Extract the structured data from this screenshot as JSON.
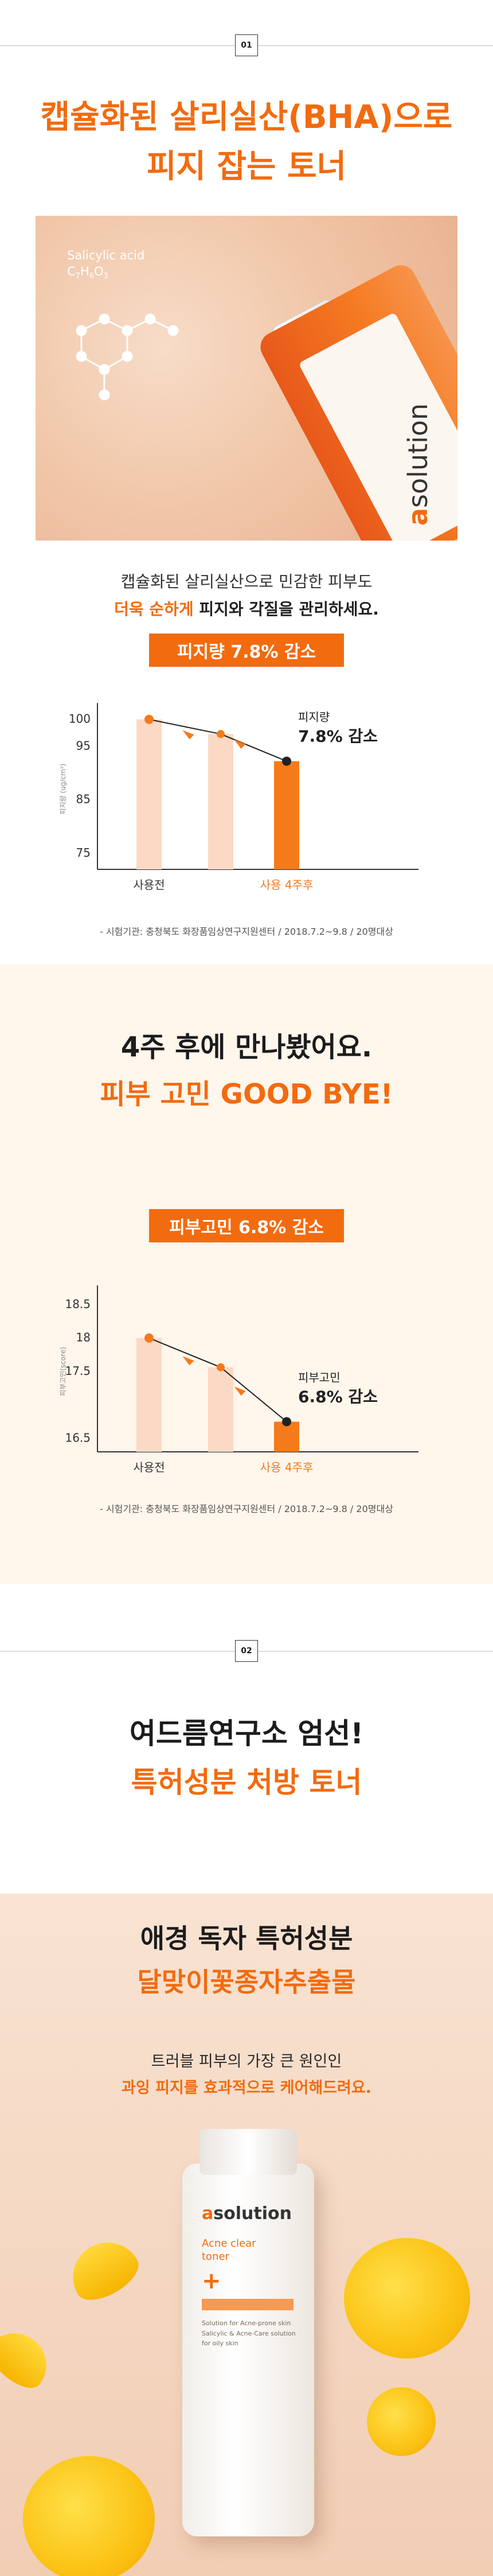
{
  "steps": {
    "one": "01",
    "two": "02"
  },
  "section1": {
    "headline_line1": "캡슐화된 살리실산(BHA)으로",
    "headline_line2": "피지 잡는 토너",
    "hero_formula_name": "Salicylic acid",
    "hero_formula_main": "C",
    "hero_formula_sub1": "7",
    "hero_formula_mid": "H",
    "hero_formula_sub2": "6",
    "hero_formula_end": "O",
    "hero_formula_sub3": "3",
    "hero_brand_a": "a",
    "hero_brand_rest": "solution",
    "desc_line1": "캡슐화된 살리실산으로 민감한 피부도",
    "desc_emph": "더욱 순하게",
    "desc_line2_rest": " 피지와 각질을 관리하세요.",
    "pill": "피지량 7.8% 감소",
    "source": "- 시험기관: 충청북도 화장품임상연구지원센터 / 2018.7.2~9.8 / 20명대상"
  },
  "section2": {
    "headline_line1": "4주 후에 만나봤어요.",
    "headline_line2": "피부 고민 GOOD BYE!",
    "pill": "피부고민 6.8% 감소",
    "source": "- 시험기관: 충청북도 화장품임상연구지원센터 / 2018.7.2~9.8 / 20명대상"
  },
  "section3": {
    "headline_line1": "여드름연구소 엄선!",
    "headline_line2": "특허성분 처방 토너"
  },
  "section4": {
    "headline_line1": "애경 독자 특허성분",
    "headline_line2": "달맞이꽃종자추출물",
    "sub_line1": "트러블 피부의 가장 큰 원인인",
    "sub_line2": "과잉 피지를 효과적으로 케어해드려요.",
    "product_brand_a": "a",
    "product_brand_rest": "solution",
    "product_title1": "Acne clear",
    "product_title2": "toner",
    "product_text": "Solution for Acne-prone skin Salicylic & Acne-Care solution for oily skin"
  },
  "chart_data": [
    {
      "type": "bar",
      "categories": [
        "사용전",
        "사용 4주후"
      ],
      "values": [
        100,
        92.2
      ],
      "ylabel": "피지량 (ug/cm²)",
      "yticks": [
        100,
        95,
        85,
        75
      ],
      "ylim": [
        72,
        102
      ],
      "annotation_line1": "피지량",
      "annotation_line2": "7.8% 감소",
      "bar_colors": [
        "#fcd9c4",
        "#f57a1a"
      ]
    },
    {
      "type": "bar",
      "categories": [
        "사용전",
        "사용 4주후"
      ],
      "values": [
        18.0,
        16.75
      ],
      "ylabel": "피부고민(score)",
      "yticks": [
        18.5,
        18,
        17.5,
        16.5
      ],
      "ylim": [
        16.3,
        18.7
      ],
      "annotation_line1": "피부고민",
      "annotation_line2": "6.8% 감소",
      "bar_colors": [
        "#fcd9c4",
        "#f57a1a"
      ]
    }
  ]
}
